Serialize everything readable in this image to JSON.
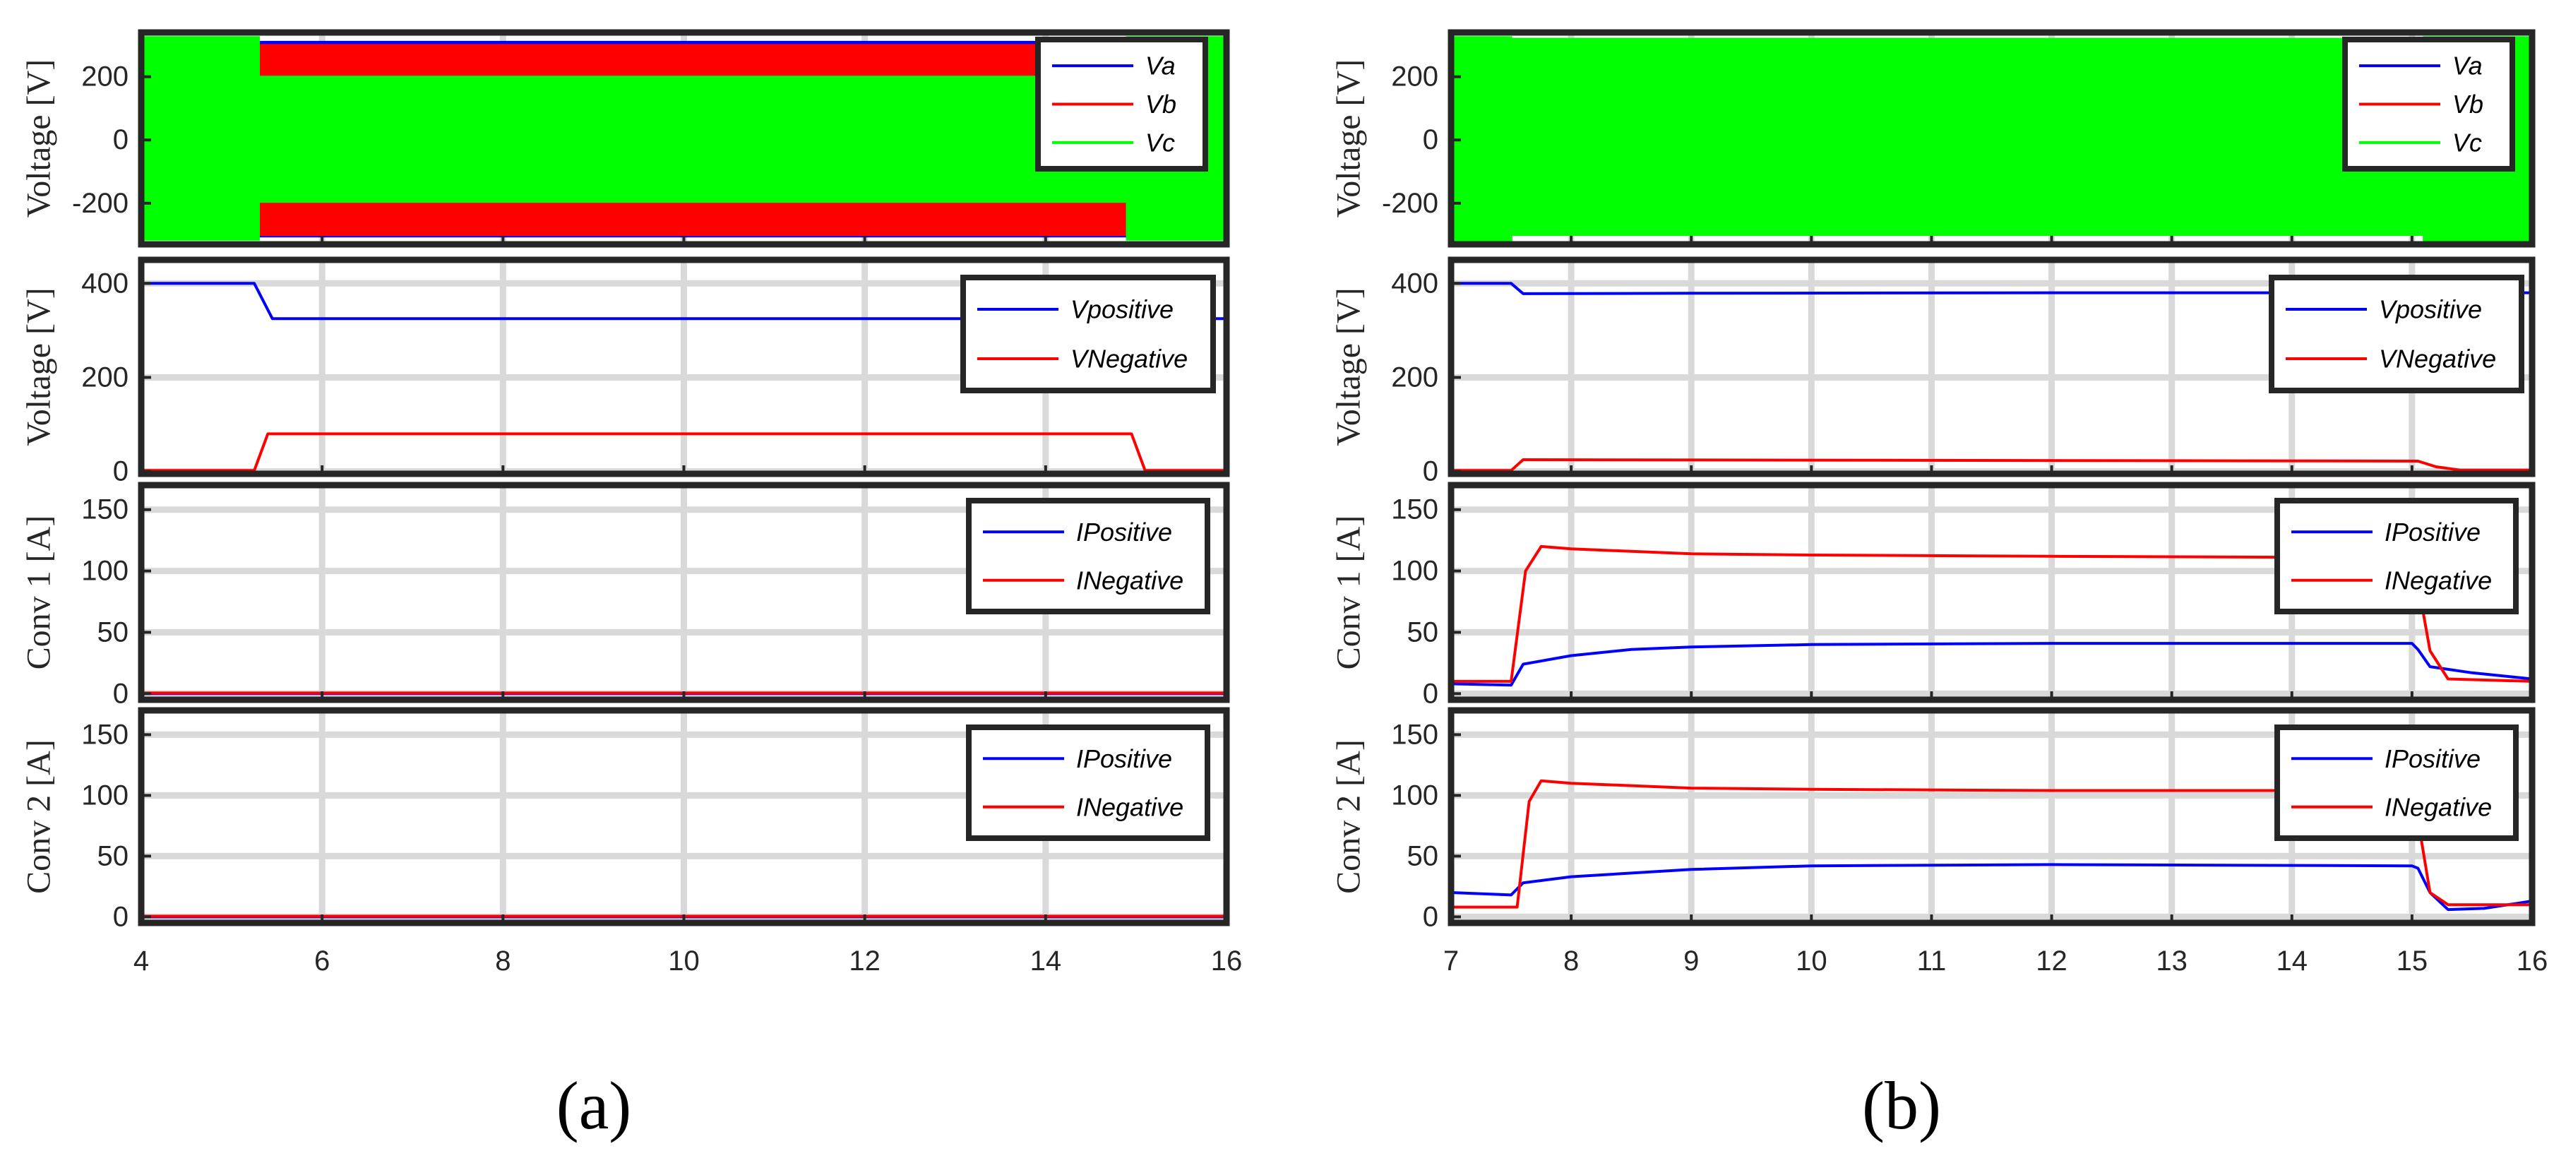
{
  "chart_data": [
    {
      "type": "line",
      "panel_label": "(a)",
      "x": {
        "range": [
          4,
          16
        ],
        "ticks": [
          4,
          6,
          8,
          10,
          12,
          14,
          16
        ],
        "tick_labels": [
          "4",
          "6",
          "8",
          "10",
          "12",
          "14",
          "16"
        ]
      },
      "subplots": [
        {
          "ylabel": "Voltage [V]",
          "ylim": [
            -330,
            340
          ],
          "yticks": [
            -200,
            0,
            200
          ],
          "ytick_labels": [
            "-200",
            "0",
            "200"
          ],
          "grid": true,
          "legend_position": "top-right",
          "legend": [
            "Va",
            "Vb",
            "Vc"
          ],
          "series": [
            {
              "name": "Va",
              "color": "#0000ff",
              "kind": "envelope",
              "x": [
                4,
                5.3,
                5.3,
                14.9,
                14.9,
                16
              ],
              "upper": [
                300,
                300,
                310,
                310,
                300,
                300
              ],
              "lower": [
                -300,
                -300,
                -305,
                -305,
                -300,
                -300
              ]
            },
            {
              "name": "Vb",
              "color": "#ff0000",
              "kind": "envelope",
              "x": [
                4,
                5.3,
                5.3,
                14.9,
                14.9,
                16
              ],
              "upper": [
                300,
                300,
                300,
                300,
                300,
                300
              ],
              "lower": [
                -300,
                -300,
                -300,
                -300,
                -300,
                -300
              ]
            },
            {
              "name": "Vc",
              "color": "#00ff00",
              "kind": "envelope",
              "x": [
                4,
                5.3,
                5.3,
                14.9,
                14.9,
                16
              ],
              "upper": [
                325,
                325,
                200,
                200,
                325,
                325
              ],
              "lower": [
                -315,
                -315,
                -195,
                -195,
                -315,
                -315
              ]
            }
          ]
        },
        {
          "ylabel": "Voltage [V]",
          "ylim": [
            -5,
            450
          ],
          "yticks": [
            0,
            200,
            400
          ],
          "ytick_labels": [
            "0",
            "200",
            "400"
          ],
          "grid": true,
          "legend_position": "top-right",
          "legend": [
            "Vpositive",
            "VNegative"
          ],
          "series": [
            {
              "name": "Vpositive",
              "color": "#0000ff",
              "x": [
                4,
                5.25,
                5.45,
                16
              ],
              "y": [
                400,
                400,
                325,
                325
              ]
            },
            {
              "name": "VNegative",
              "color": "#ff0000",
              "x": [
                4,
                5.25,
                5.4,
                14.95,
                15.1,
                16
              ],
              "y": [
                2,
                2,
                80,
                80,
                2,
                2
              ]
            }
          ]
        },
        {
          "ylabel": "Conv 1 [A]",
          "ylim": [
            -5,
            170
          ],
          "yticks": [
            0,
            50,
            100,
            150
          ],
          "ytick_labels": [
            "0",
            "50",
            "100",
            "150"
          ],
          "grid": true,
          "legend_position": "top-right",
          "legend": [
            "IPositive",
            "INegative"
          ],
          "series": [
            {
              "name": "IPositive",
              "color": "#0000ff",
              "x": [
                4,
                16
              ],
              "y": [
                0,
                0
              ]
            },
            {
              "name": "INegative",
              "color": "#ff0000",
              "x": [
                4,
                16
              ],
              "y": [
                0.5,
                0.5
              ]
            }
          ]
        },
        {
          "ylabel": "Conv 2 [A]",
          "ylim": [
            -5,
            170
          ],
          "yticks": [
            0,
            50,
            100,
            150
          ],
          "ytick_labels": [
            "0",
            "50",
            "100",
            "150"
          ],
          "grid": true,
          "legend_position": "top-right",
          "legend": [
            "IPositive",
            "INegative"
          ],
          "series": [
            {
              "name": "IPositive",
              "color": "#0000ff",
              "x": [
                4,
                16
              ],
              "y": [
                0,
                0
              ]
            },
            {
              "name": "INegative",
              "color": "#ff0000",
              "x": [
                4,
                16
              ],
              "y": [
                0.5,
                0.5
              ]
            }
          ]
        }
      ]
    },
    {
      "type": "line",
      "panel_label": "(b)",
      "x": {
        "range": [
          7,
          16
        ],
        "ticks": [
          7,
          8,
          9,
          10,
          11,
          12,
          13,
          14,
          15,
          16
        ],
        "tick_labels": [
          "7",
          "8",
          "9",
          "10",
          "11",
          "12",
          "13",
          "14",
          "15",
          "16"
        ]
      },
      "subplots": [
        {
          "ylabel": "Voltage [V]",
          "ylim": [
            -330,
            340
          ],
          "yticks": [
            -200,
            0,
            200
          ],
          "ytick_labels": [
            "-200",
            "0",
            "200"
          ],
          "grid": true,
          "legend_position": "top-right",
          "legend": [
            "Va",
            "Vb",
            "Vc"
          ],
          "series": [
            {
              "name": "Va",
              "color": "#0000ff",
              "kind": "envelope",
              "x": [
                7,
                7.5,
                7.5,
                15.1,
                15.1,
                16
              ],
              "upper": [
                320,
                320,
                310,
                310,
                320,
                320
              ],
              "lower": [
                -315,
                -315,
                -295,
                -295,
                -315,
                -315
              ]
            },
            {
              "name": "Vb",
              "color": "#ff0000",
              "kind": "envelope",
              "x": [
                7,
                7.5,
                7.5,
                15.1,
                15.1,
                16
              ],
              "upper": [
                320,
                320,
                300,
                300,
                320,
                320
              ],
              "lower": [
                -315,
                -315,
                -285,
                -285,
                -315,
                -315
              ]
            },
            {
              "name": "Vc",
              "color": "#00ff00",
              "kind": "envelope",
              "x": [
                7,
                7.5,
                7.5,
                15.1,
                15.1,
                16
              ],
              "upper": [
                325,
                325,
                320,
                320,
                325,
                325
              ],
              "lower": [
                -320,
                -320,
                -300,
                -300,
                -320,
                -320
              ]
            }
          ]
        },
        {
          "ylabel": "Voltage [V]",
          "ylim": [
            -5,
            450
          ],
          "yticks": [
            0,
            200,
            400
          ],
          "ytick_labels": [
            "0",
            "200",
            "400"
          ],
          "grid": true,
          "legend_position": "top-right",
          "legend": [
            "Vpositive",
            "VNegative"
          ],
          "series": [
            {
              "name": "Vpositive",
              "color": "#0000ff",
              "x": [
                7,
                7.5,
                7.6,
                9,
                12,
                16
              ],
              "y": [
                400,
                400,
                378,
                379,
                380,
                380
              ]
            },
            {
              "name": "VNegative",
              "color": "#ff0000",
              "x": [
                7,
                7.5,
                7.6,
                15.05,
                15.2,
                15.4,
                16
              ],
              "y": [
                2,
                2,
                25,
                22,
                10,
                3,
                3
              ]
            }
          ]
        },
        {
          "ylabel": "Conv 1 [A]",
          "ylim": [
            -5,
            170
          ],
          "yticks": [
            0,
            50,
            100,
            150
          ],
          "ytick_labels": [
            "0",
            "50",
            "100",
            "150"
          ],
          "grid": true,
          "legend_position": "top-right",
          "legend": [
            "IPositive",
            "INegative"
          ],
          "series": [
            {
              "name": "IPositive",
              "color": "#0000ff",
              "x": [
                7,
                7.5,
                7.6,
                8,
                8.5,
                9,
                10,
                12,
                15,
                15.05,
                15.15,
                15.5,
                16
              ],
              "y": [
                8,
                7,
                24,
                31,
                36,
                38,
                40,
                41,
                41,
                36,
                22,
                17,
                12
              ]
            },
            {
              "name": "INegative",
              "color": "#ff0000",
              "x": [
                7,
                7.5,
                7.62,
                7.75,
                8,
                9,
                10,
                12,
                14.5,
                15,
                15.05,
                15.15,
                15.3,
                16
              ],
              "y": [
                10,
                10,
                100,
                120,
                118,
                114,
                113,
                112,
                111,
                110,
                90,
                35,
                12,
                10
              ]
            }
          ]
        },
        {
          "ylabel": "Conv 2 [A]",
          "ylim": [
            -5,
            170
          ],
          "yticks": [
            0,
            50,
            100,
            150
          ],
          "ytick_labels": [
            "0",
            "50",
            "100",
            "150"
          ],
          "grid": true,
          "legend_position": "top-right",
          "legend": [
            "IPositive",
            "INegative"
          ],
          "series": [
            {
              "name": "IPositive",
              "color": "#0000ff",
              "x": [
                7,
                7.5,
                7.6,
                8,
                9,
                10,
                12,
                15,
                15.05,
                15.15,
                15.3,
                15.6,
                16
              ],
              "y": [
                20,
                18,
                28,
                33,
                39,
                42,
                43,
                42,
                40,
                20,
                6,
                7,
                13
              ]
            },
            {
              "name": "INegative",
              "color": "#ff0000",
              "x": [
                7,
                7.55,
                7.65,
                7.75,
                8,
                9,
                10,
                12,
                14.5,
                15,
                15.05,
                15.15,
                15.3,
                16
              ],
              "y": [
                8,
                8,
                95,
                112,
                110,
                106,
                105,
                104,
                104,
                103,
                80,
                20,
                10,
                10
              ]
            }
          ]
        }
      ]
    }
  ]
}
